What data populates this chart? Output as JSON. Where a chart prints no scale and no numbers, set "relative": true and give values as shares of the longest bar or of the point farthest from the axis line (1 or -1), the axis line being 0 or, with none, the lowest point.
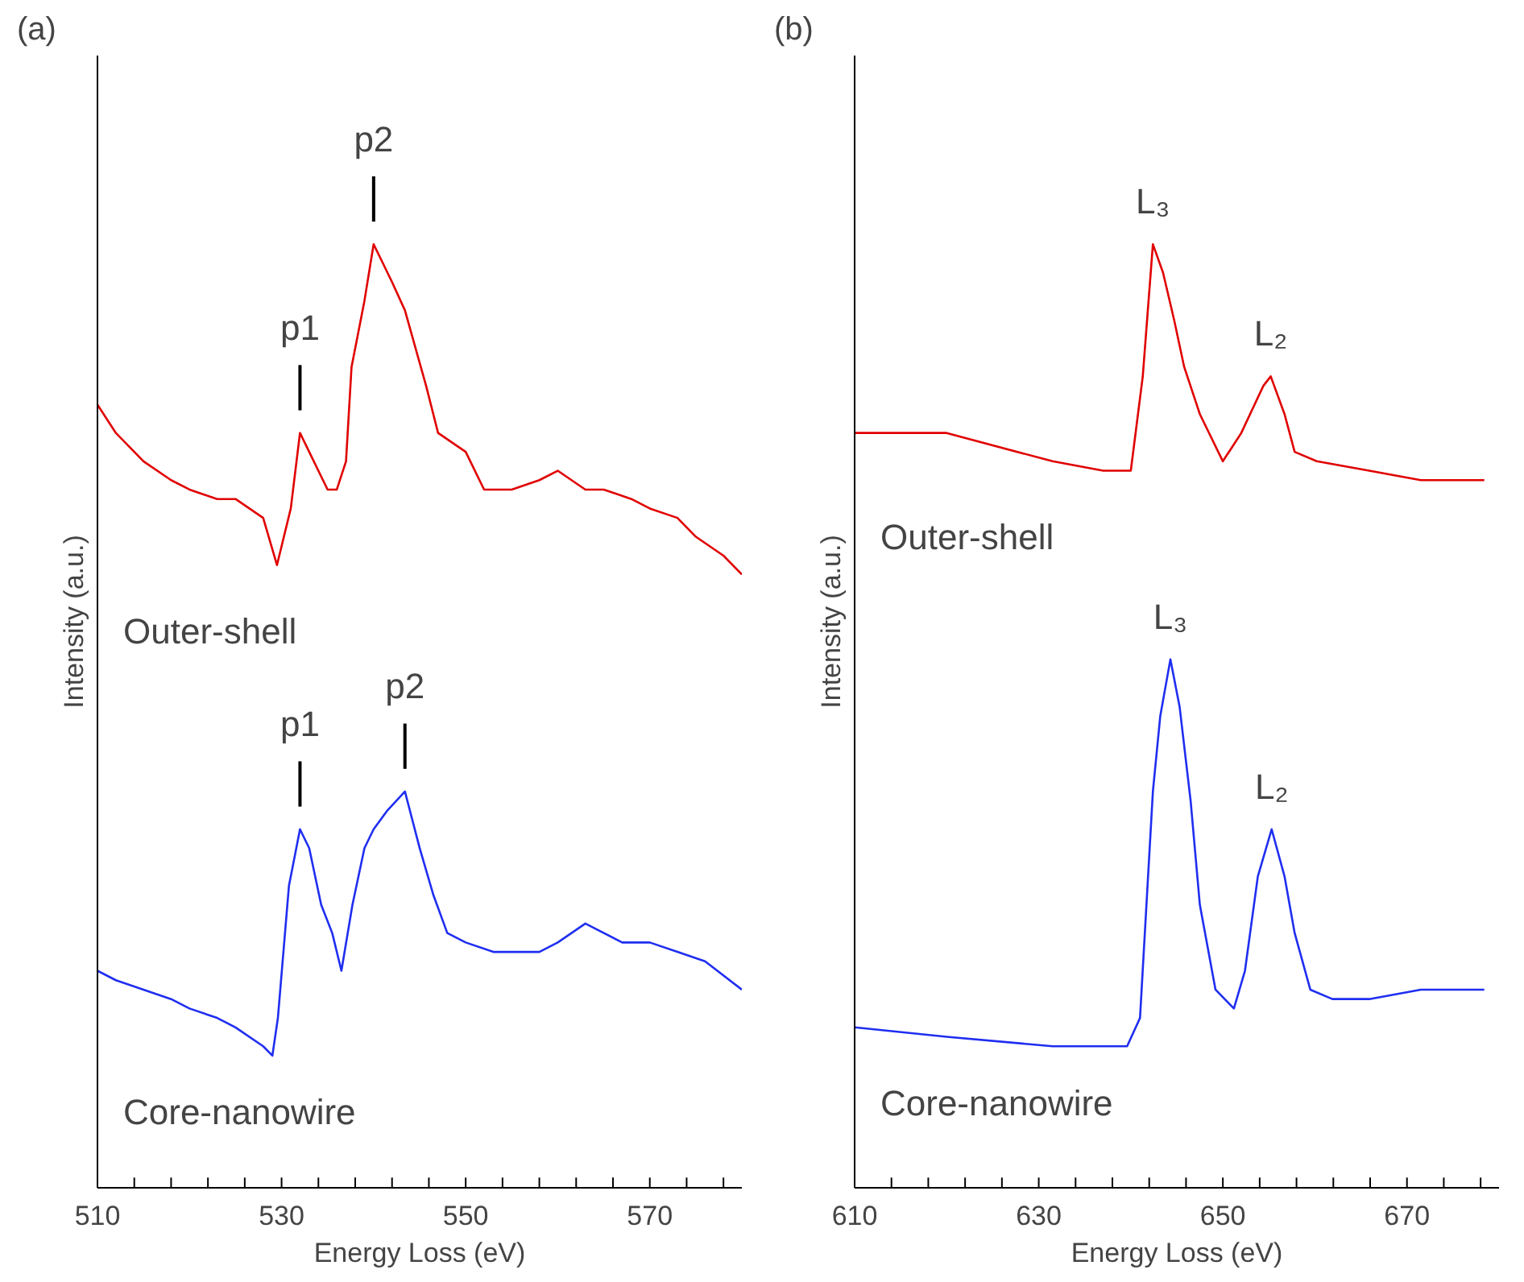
{
  "chart_data": [
    {
      "type": "line",
      "relative": true,
      "title": "(a)",
      "xlabel": "Energy Loss (eV)",
      "ylabel": "Intensity (a.u.)",
      "xlim": [
        510,
        580
      ],
      "xticks": [
        510,
        {
          "value": 514,
          "label": null
        },
        {
          "value": 518,
          "label": null
        },
        {
          "value": 522,
          "label": null
        },
        {
          "value": 526,
          "label": null
        },
        530,
        {
          "value": 534,
          "label": null
        },
        {
          "value": 538,
          "label": null
        },
        {
          "value": 542,
          "label": null
        },
        {
          "value": 546,
          "label": null
        },
        550,
        {
          "value": 554,
          "label": null
        },
        {
          "value": 558,
          "label": null
        },
        {
          "value": 562,
          "label": null
        },
        {
          "value": 566,
          "label": null
        },
        570,
        {
          "value": 574,
          "label": null
        },
        {
          "value": 578,
          "label": null
        }
      ],
      "series": [
        {
          "name": "Outer-shell",
          "color": "#e00000",
          "x": [
            510,
            512,
            515,
            518,
            520,
            523,
            525,
            528,
            529.5,
            531,
            532,
            533,
            535,
            536,
            537,
            537.6,
            539,
            540,
            541,
            542,
            543.4,
            545.7,
            547,
            550,
            552,
            555,
            558,
            560,
            563,
            565,
            568,
            570,
            573,
            575,
            578,
            580
          ],
          "values": [
            0.83,
            0.8,
            0.77,
            0.75,
            0.74,
            0.73,
            0.73,
            0.71,
            0.66,
            0.72,
            0.8,
            0.78,
            0.74,
            0.74,
            0.77,
            0.87,
            0.94,
            1.0,
            0.98,
            0.96,
            0.93,
            0.85,
            0.8,
            0.78,
            0.74,
            0.74,
            0.75,
            0.76,
            0.74,
            0.74,
            0.73,
            0.72,
            0.71,
            0.69,
            0.67,
            0.65
          ]
        },
        {
          "name": "Core-nanowire",
          "color": "#1f2ef0",
          "x": [
            510,
            512,
            515,
            518,
            520,
            523,
            525,
            528,
            529,
            529.6,
            530.8,
            532,
            533,
            534.3,
            535.5,
            536.5,
            537.7,
            539,
            540,
            541.5,
            543.4,
            545,
            546.5,
            548,
            550,
            553,
            555,
            558,
            560,
            563,
            567,
            570,
            573,
            576,
            580
          ],
          "values": [
            0.23,
            0.22,
            0.21,
            0.2,
            0.19,
            0.18,
            0.17,
            0.15,
            0.14,
            0.18,
            0.32,
            0.38,
            0.36,
            0.3,
            0.27,
            0.23,
            0.3,
            0.36,
            0.38,
            0.4,
            0.42,
            0.36,
            0.31,
            0.27,
            0.26,
            0.25,
            0.25,
            0.25,
            0.26,
            0.28,
            0.26,
            0.26,
            0.25,
            0.24,
            0.21
          ]
        }
      ],
      "annotations": [
        {
          "text": "p1",
          "x": 532,
          "y": 0.8
        },
        {
          "text": "p2",
          "x": 540,
          "y": 1.0
        },
        {
          "text": "p1",
          "x": 532,
          "y": 0.38
        },
        {
          "text": "p2",
          "x": 543.4,
          "y": 0.42
        }
      ]
    },
    {
      "type": "line",
      "relative": true,
      "title": "(b)",
      "xlabel": "Energy Loss (eV)",
      "ylabel": "Intensity (a.u.)",
      "xlim": [
        610,
        680
      ],
      "xticks": [
        610,
        {
          "value": 614,
          "label": null
        },
        {
          "value": 618,
          "label": null
        },
        {
          "value": 622,
          "label": null
        },
        {
          "value": 626,
          "label": null
        },
        630,
        {
          "value": 634,
          "label": null
        },
        {
          "value": 638,
          "label": null
        },
        {
          "value": 642,
          "label": null
        },
        {
          "value": 646,
          "label": null
        },
        650,
        {
          "value": 654,
          "label": null
        },
        {
          "value": 658,
          "label": null
        },
        {
          "value": 662,
          "label": null
        },
        {
          "value": 666,
          "label": null
        },
        670,
        {
          "value": 674,
          "label": null
        },
        {
          "value": 678,
          "label": null
        }
      ],
      "series": [
        {
          "name": "Outer-shell",
          "color": "#e00000",
          "x": [
            610,
            620,
            631.5,
            637,
            640,
            641.3,
            642.4,
            643.5,
            644.7,
            645.8,
            647.5,
            650,
            652,
            654.4,
            655.2,
            656.7,
            657.8,
            660.2,
            665.9,
            671.5,
            678.4
          ],
          "values": [
            0.8,
            0.8,
            0.77,
            0.76,
            0.76,
            0.86,
            1.0,
            0.97,
            0.92,
            0.87,
            0.82,
            0.77,
            0.8,
            0.85,
            0.86,
            0.82,
            0.78,
            0.77,
            0.76,
            0.75,
            0.75
          ]
        },
        {
          "name": "Core-nanowire",
          "color": "#1f2ef0",
          "x": [
            610,
            620,
            631.5,
            639.6,
            641,
            642.4,
            643.2,
            644.3,
            645.3,
            646.5,
            647.5,
            649.2,
            651.2,
            652.4,
            653.8,
            655.3,
            656.7,
            657.8,
            659.5,
            661.9,
            665.9,
            671.5,
            678.4
          ],
          "values": [
            0.17,
            0.16,
            0.15,
            0.15,
            0.18,
            0.42,
            0.5,
            0.56,
            0.51,
            0.41,
            0.3,
            0.21,
            0.19,
            0.23,
            0.33,
            0.38,
            0.33,
            0.27,
            0.21,
            0.2,
            0.2,
            0.21,
            0.21
          ]
        }
      ],
      "annotations": [
        {
          "text": "L₃",
          "x": 642.4,
          "y": 1.0
        },
        {
          "text": "L₂",
          "x": 655.2,
          "y": 0.86
        },
        {
          "text": "L₃",
          "x": 644.3,
          "y": 0.56
        },
        {
          "text": "L₂",
          "x": 655.3,
          "y": 0.38
        }
      ]
    }
  ]
}
